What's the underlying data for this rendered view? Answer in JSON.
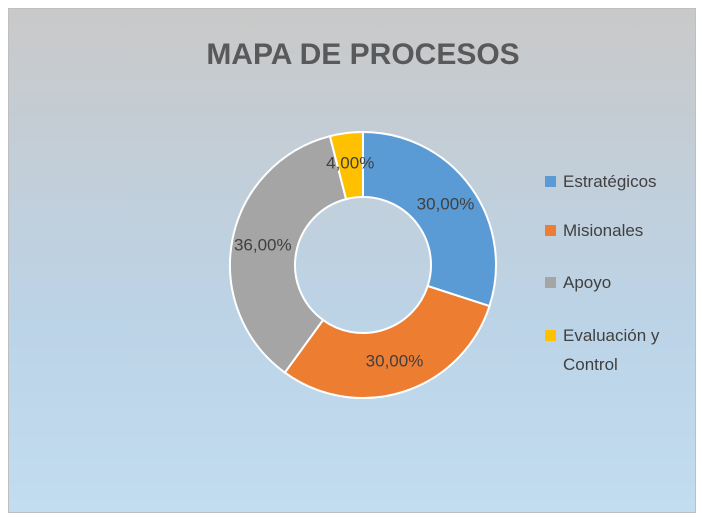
{
  "chart_data": {
    "type": "donut",
    "title": "MAPA DE PROCESOS",
    "categories": [
      "Estratégicos",
      "Misionales",
      "Apoyo",
      "Evaluación y Control"
    ],
    "values": [
      30,
      30,
      36,
      4
    ],
    "value_labels": [
      "30,00%",
      "30,00%",
      "36,00%",
      "4,00%"
    ],
    "colors": [
      "#5b9bd5",
      "#ed7d31",
      "#a5a5a5",
      "#ffc000"
    ],
    "legend": "right"
  }
}
